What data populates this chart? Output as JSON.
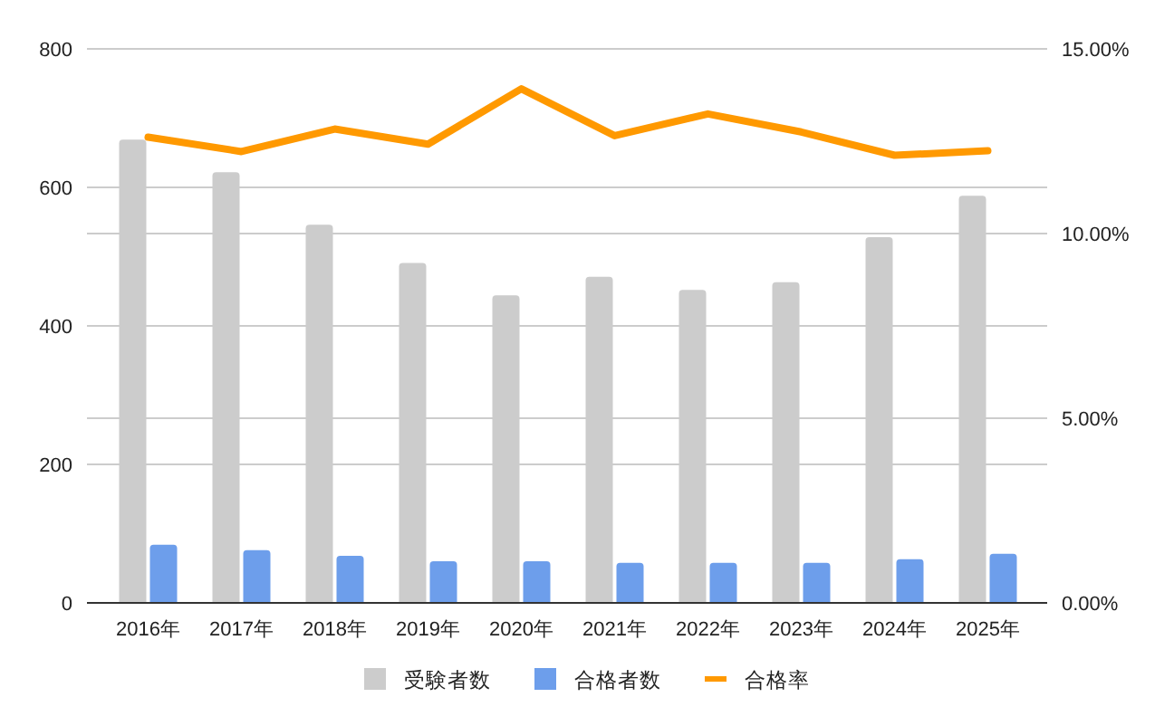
{
  "chart_data": {
    "type": "bar",
    "categories": [
      "2016年",
      "2017年",
      "2018年",
      "2019年",
      "2020年",
      "2021年",
      "2022年",
      "2023年",
      "2024年",
      "2025年"
    ],
    "series": [
      {
        "name": "受験者数",
        "color": "#cccccc",
        "values": [
          669,
          622,
          546,
          491,
          444,
          471,
          452,
          463,
          528,
          588
        ]
      },
      {
        "name": "合格者数",
        "color": "#6d9eeb",
        "values": [
          84,
          76,
          68,
          60,
          60,
          58,
          58,
          58,
          63,
          71
        ]
      },
      {
        "name": "合格率",
        "type": "line",
        "axis": "y2",
        "color": "#ff9900",
        "line_style": "solid",
        "values": [
          12.61,
          12.22,
          12.83,
          12.42,
          13.92,
          12.65,
          13.24,
          12.75,
          12.12,
          12.24
        ]
      }
    ],
    "ylim": [
      0,
      800
    ],
    "yticks": [
      0,
      200,
      400,
      600,
      800
    ],
    "y2lim": [
      0,
      15
    ],
    "y2ticks": [
      {
        "value": 0,
        "label": "0.00%"
      },
      {
        "value": 5,
        "label": "5.00%"
      },
      {
        "value": 10,
        "label": "10.00%"
      },
      {
        "value": 15,
        "label": "15.00%"
      }
    ],
    "grid": true,
    "legend": "bottom",
    "marker": "none"
  }
}
